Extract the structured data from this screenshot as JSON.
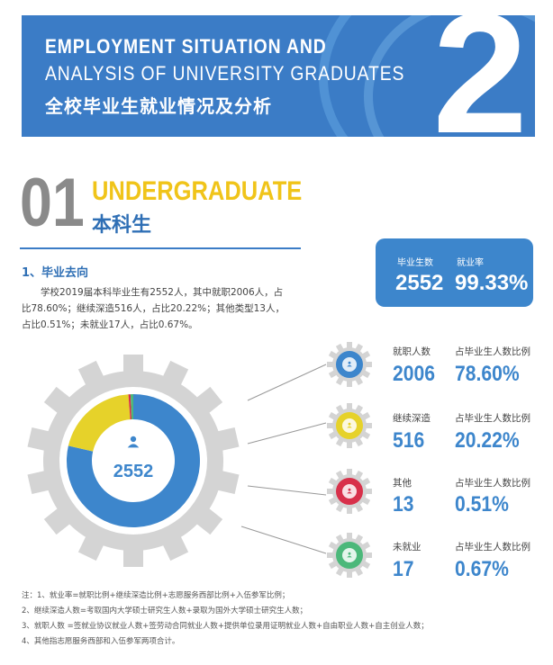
{
  "banner": {
    "title_en_1": "EMPLOYMENT SITUATION AND",
    "title_en_2": "ANALYSIS OF UNIVERSITY GRADUATES",
    "title_cn": "全校毕业生就业情况及分析",
    "chapter_number": "2"
  },
  "section": {
    "number": "01",
    "title_en": "UNDERGRADUATE",
    "title_cn": "本科生"
  },
  "subsection": {
    "heading": "1、毕业去向",
    "paragraph": "学校2019届本科毕业生有2552人，其中就职2006人，占比78.60%；继续深造516人，占比20.22%；其他类型13人，占比0.51%；未就业17人，占比0.67%。"
  },
  "summary": {
    "graduates_label": "毕业生数",
    "graduates_value": "2552",
    "rate_label": "就业率",
    "rate_value": "99.33%"
  },
  "donut_center": "2552",
  "categories": [
    {
      "label": "就职人数",
      "count": "2006",
      "ratio_label": "占毕业生人数比例",
      "ratio": "78.60%",
      "value": 2006,
      "color": "#3d86cc"
    },
    {
      "label": "继续深造",
      "count": "516",
      "ratio_label": "占毕业生人数比例",
      "ratio": "20.22%",
      "value": 516,
      "color": "#e6d22a"
    },
    {
      "label": "其他",
      "count": "13",
      "ratio_label": "占毕业生人数比例",
      "ratio": "0.51%",
      "value": 13,
      "color": "#d8304a"
    },
    {
      "label": "未就业",
      "count": "17",
      "ratio_label": "占毕业生人数比例",
      "ratio": "0.67%",
      "value": 17,
      "color": "#4cb87a"
    }
  ],
  "notes": [
    "注：1、就业率=就职比例+继续深造比例+志愿服务西部比例+入伍参军比例；",
    "2、继续深造人数=考取国内大学硕士研究生人数+录取为国外大学硕士研究生人数；",
    "3、就职人数 =签就业协议就业人数+签劳动合同就业人数+提供单位录用证明就业人数+自由职业人数+自主创业人数；",
    "4、其他指志愿服务西部和入伍参军两项合计。"
  ],
  "colors": {
    "banner": "#3b7cc6",
    "accent_yellow": "#f0c419",
    "gear": "#d4d4d4"
  }
}
